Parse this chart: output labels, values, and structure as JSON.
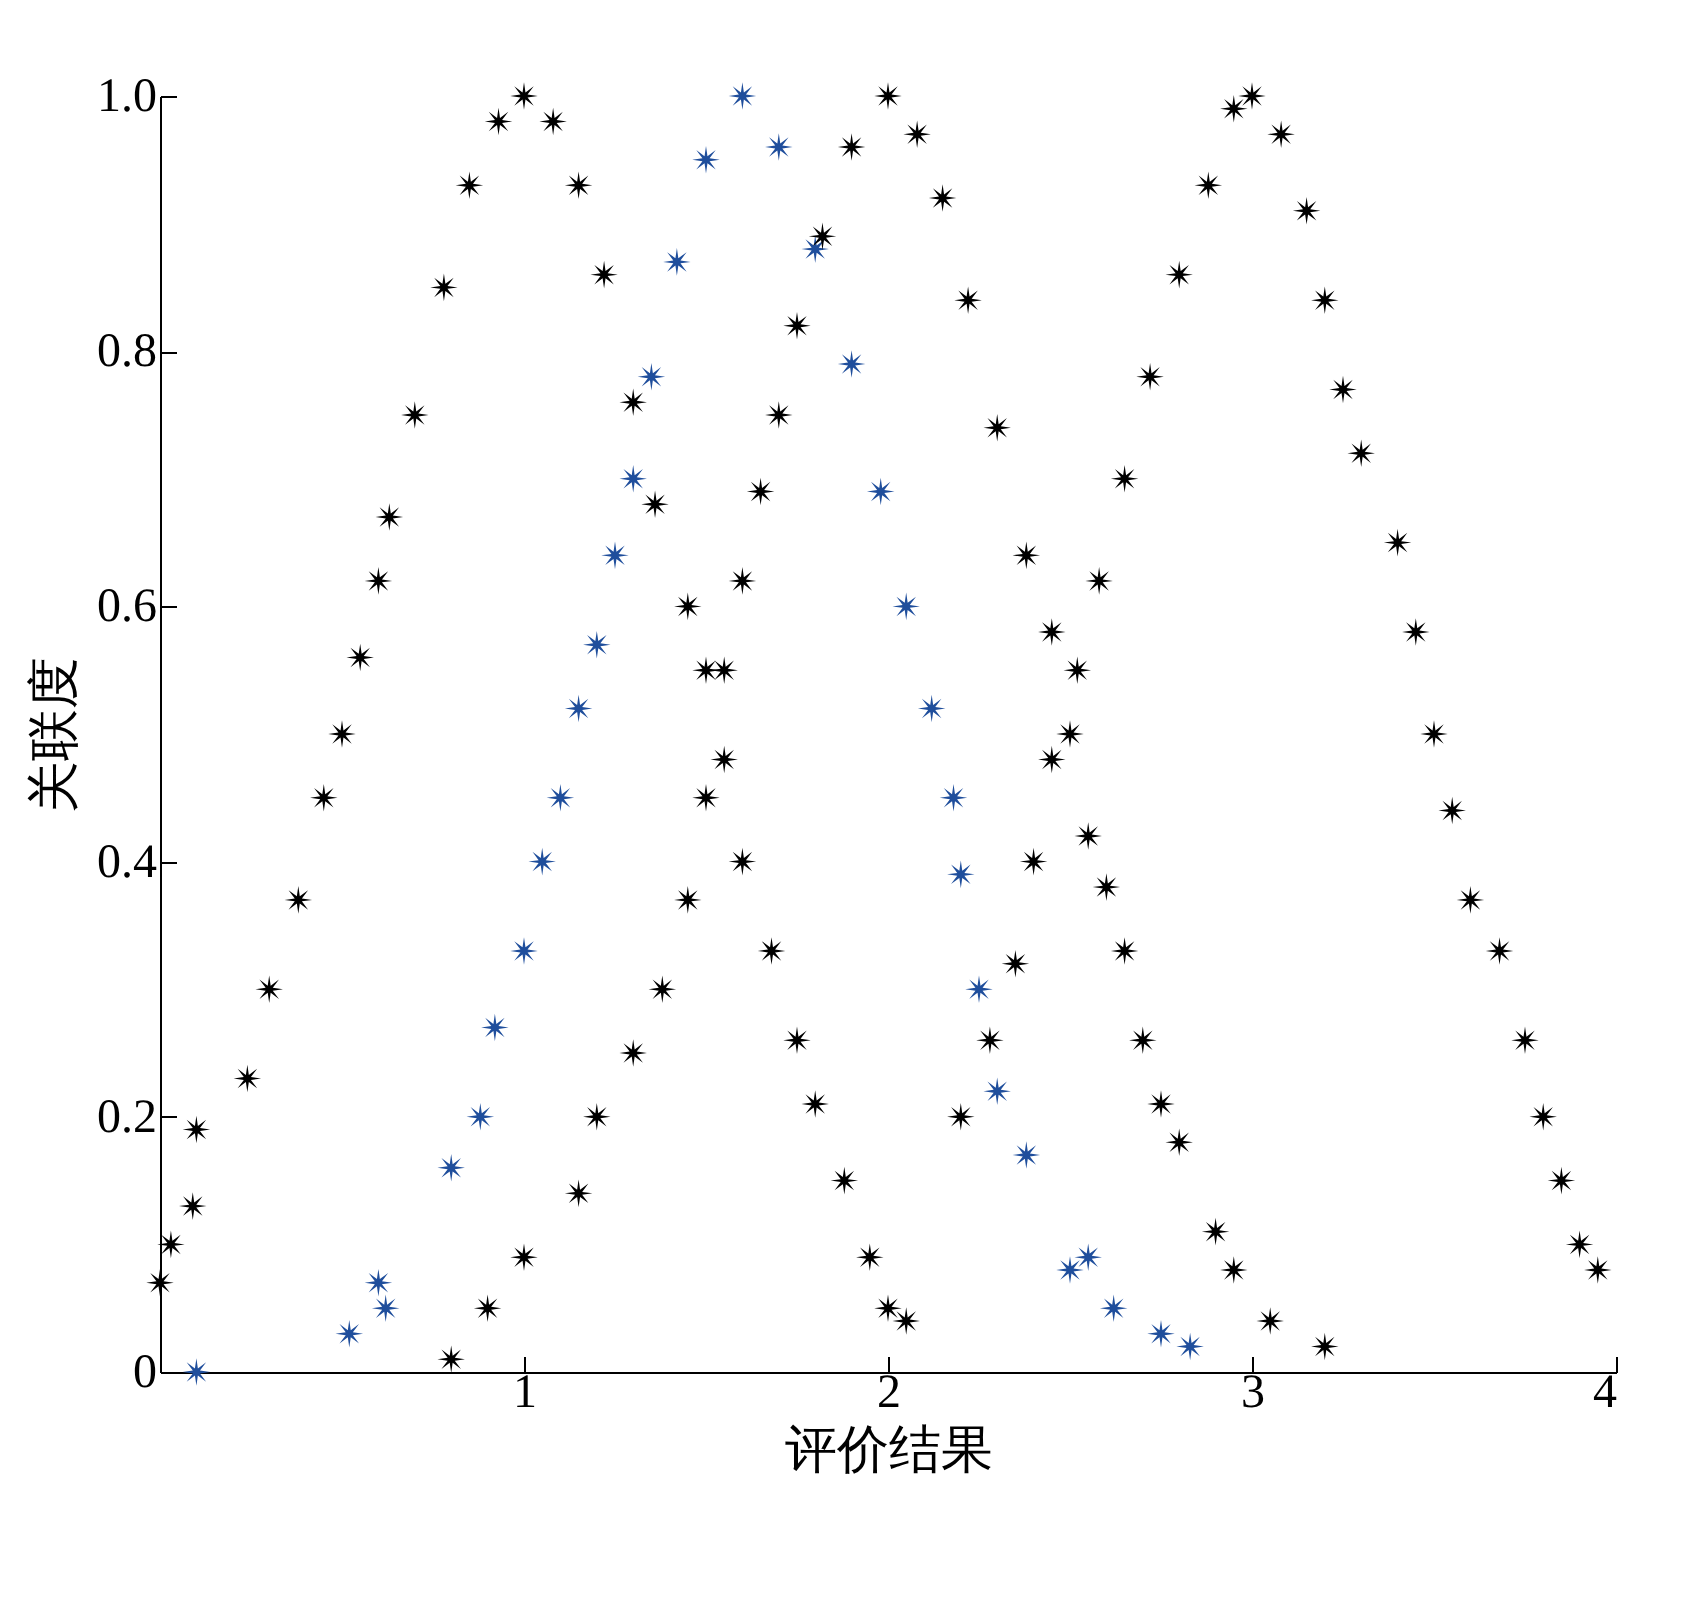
{
  "chart_data": {
    "type": "scatter",
    "xlabel": "评价结果",
    "ylabel": "关联度",
    "xlim": [
      0,
      4
    ],
    "xticks": [
      1,
      2,
      3,
      4
    ],
    "ylim": [
      0,
      1
    ],
    "yticks": [
      0,
      0.2,
      0.4,
      0.6,
      0.8,
      {
        "value": 1,
        "label": "1.0"
      }
    ],
    "grid": false,
    "legend": false,
    "marker": "star",
    "series": [
      {
        "color": "#000000",
        "x": [
          0.0,
          0.03,
          0.09,
          0.1,
          0.24,
          0.3,
          0.38,
          0.45,
          0.5,
          0.55,
          0.6,
          0.63,
          0.7,
          0.78,
          0.85,
          0.93,
          1.0,
          1.08,
          1.15,
          1.22,
          1.3,
          1.36,
          1.45,
          1.5,
          1.55,
          1.6,
          1.68,
          1.75,
          1.8,
          1.88,
          1.95,
          2.0,
          2.05
        ],
        "values": [
          0.07,
          0.1,
          0.13,
          0.19,
          0.23,
          0.3,
          0.37,
          0.45,
          0.5,
          0.56,
          0.62,
          0.67,
          0.75,
          0.85,
          0.93,
          0.98,
          1.0,
          0.98,
          0.93,
          0.86,
          0.76,
          0.68,
          0.6,
          0.55,
          0.48,
          0.4,
          0.33,
          0.26,
          0.21,
          0.15,
          0.09,
          0.05,
          0.04
        ]
      },
      {
        "color": "#1f4e9c",
        "x": [
          0.1,
          0.52,
          0.6,
          0.62,
          0.8,
          0.88,
          0.92,
          1.0,
          1.05,
          1.1,
          1.15,
          1.2,
          1.25,
          1.3,
          1.35,
          1.42,
          1.5,
          1.6,
          1.7,
          1.8,
          1.9,
          1.98,
          2.05,
          2.12,
          2.18,
          2.2,
          2.25,
          2.3,
          2.38,
          2.5,
          2.55,
          2.62,
          2.75,
          2.83
        ],
        "values": [
          0.0,
          0.03,
          0.07,
          0.05,
          0.16,
          0.2,
          0.27,
          0.33,
          0.4,
          0.45,
          0.52,
          0.57,
          0.64,
          0.7,
          0.78,
          0.87,
          0.95,
          1.0,
          0.96,
          0.88,
          0.79,
          0.69,
          0.6,
          0.52,
          0.45,
          0.39,
          0.3,
          0.22,
          0.17,
          0.08,
          0.09,
          0.05,
          0.03,
          0.02
        ]
      },
      {
        "color": "#000000",
        "x": [
          0.8,
          0.9,
          1.0,
          1.15,
          1.2,
          1.3,
          1.38,
          1.45,
          1.5,
          1.55,
          1.6,
          1.65,
          1.7,
          1.75,
          1.82,
          1.9,
          2.0,
          2.08,
          2.15,
          2.22,
          2.3,
          2.38,
          2.45,
          2.5,
          2.55,
          2.6,
          2.65,
          2.7,
          2.75,
          2.8,
          2.9,
          2.95,
          3.05,
          3.2
        ],
        "values": [
          0.01,
          0.05,
          0.09,
          0.14,
          0.2,
          0.25,
          0.3,
          0.37,
          0.45,
          0.55,
          0.62,
          0.69,
          0.75,
          0.82,
          0.89,
          0.96,
          1.0,
          0.97,
          0.92,
          0.84,
          0.74,
          0.64,
          0.58,
          0.5,
          0.42,
          0.38,
          0.33,
          0.26,
          0.21,
          0.18,
          0.11,
          0.08,
          0.04,
          0.02
        ]
      },
      {
        "color": "#000000",
        "x": [
          2.2,
          2.28,
          2.35,
          2.4,
          2.45,
          2.52,
          2.58,
          2.65,
          2.72,
          2.8,
          2.88,
          2.95,
          3.0,
          3.08,
          3.15,
          3.2,
          3.25,
          3.3,
          3.4,
          3.45,
          3.5,
          3.55,
          3.6,
          3.68,
          3.75,
          3.8,
          3.85,
          3.9,
          3.95
        ],
        "values": [
          0.2,
          0.26,
          0.32,
          0.4,
          0.48,
          0.55,
          0.62,
          0.7,
          0.78,
          0.86,
          0.93,
          0.99,
          1.0,
          0.97,
          0.91,
          0.84,
          0.77,
          0.72,
          0.65,
          0.58,
          0.5,
          0.44,
          0.37,
          0.33,
          0.26,
          0.2,
          0.15,
          0.1,
          0.08
        ]
      }
    ]
  }
}
